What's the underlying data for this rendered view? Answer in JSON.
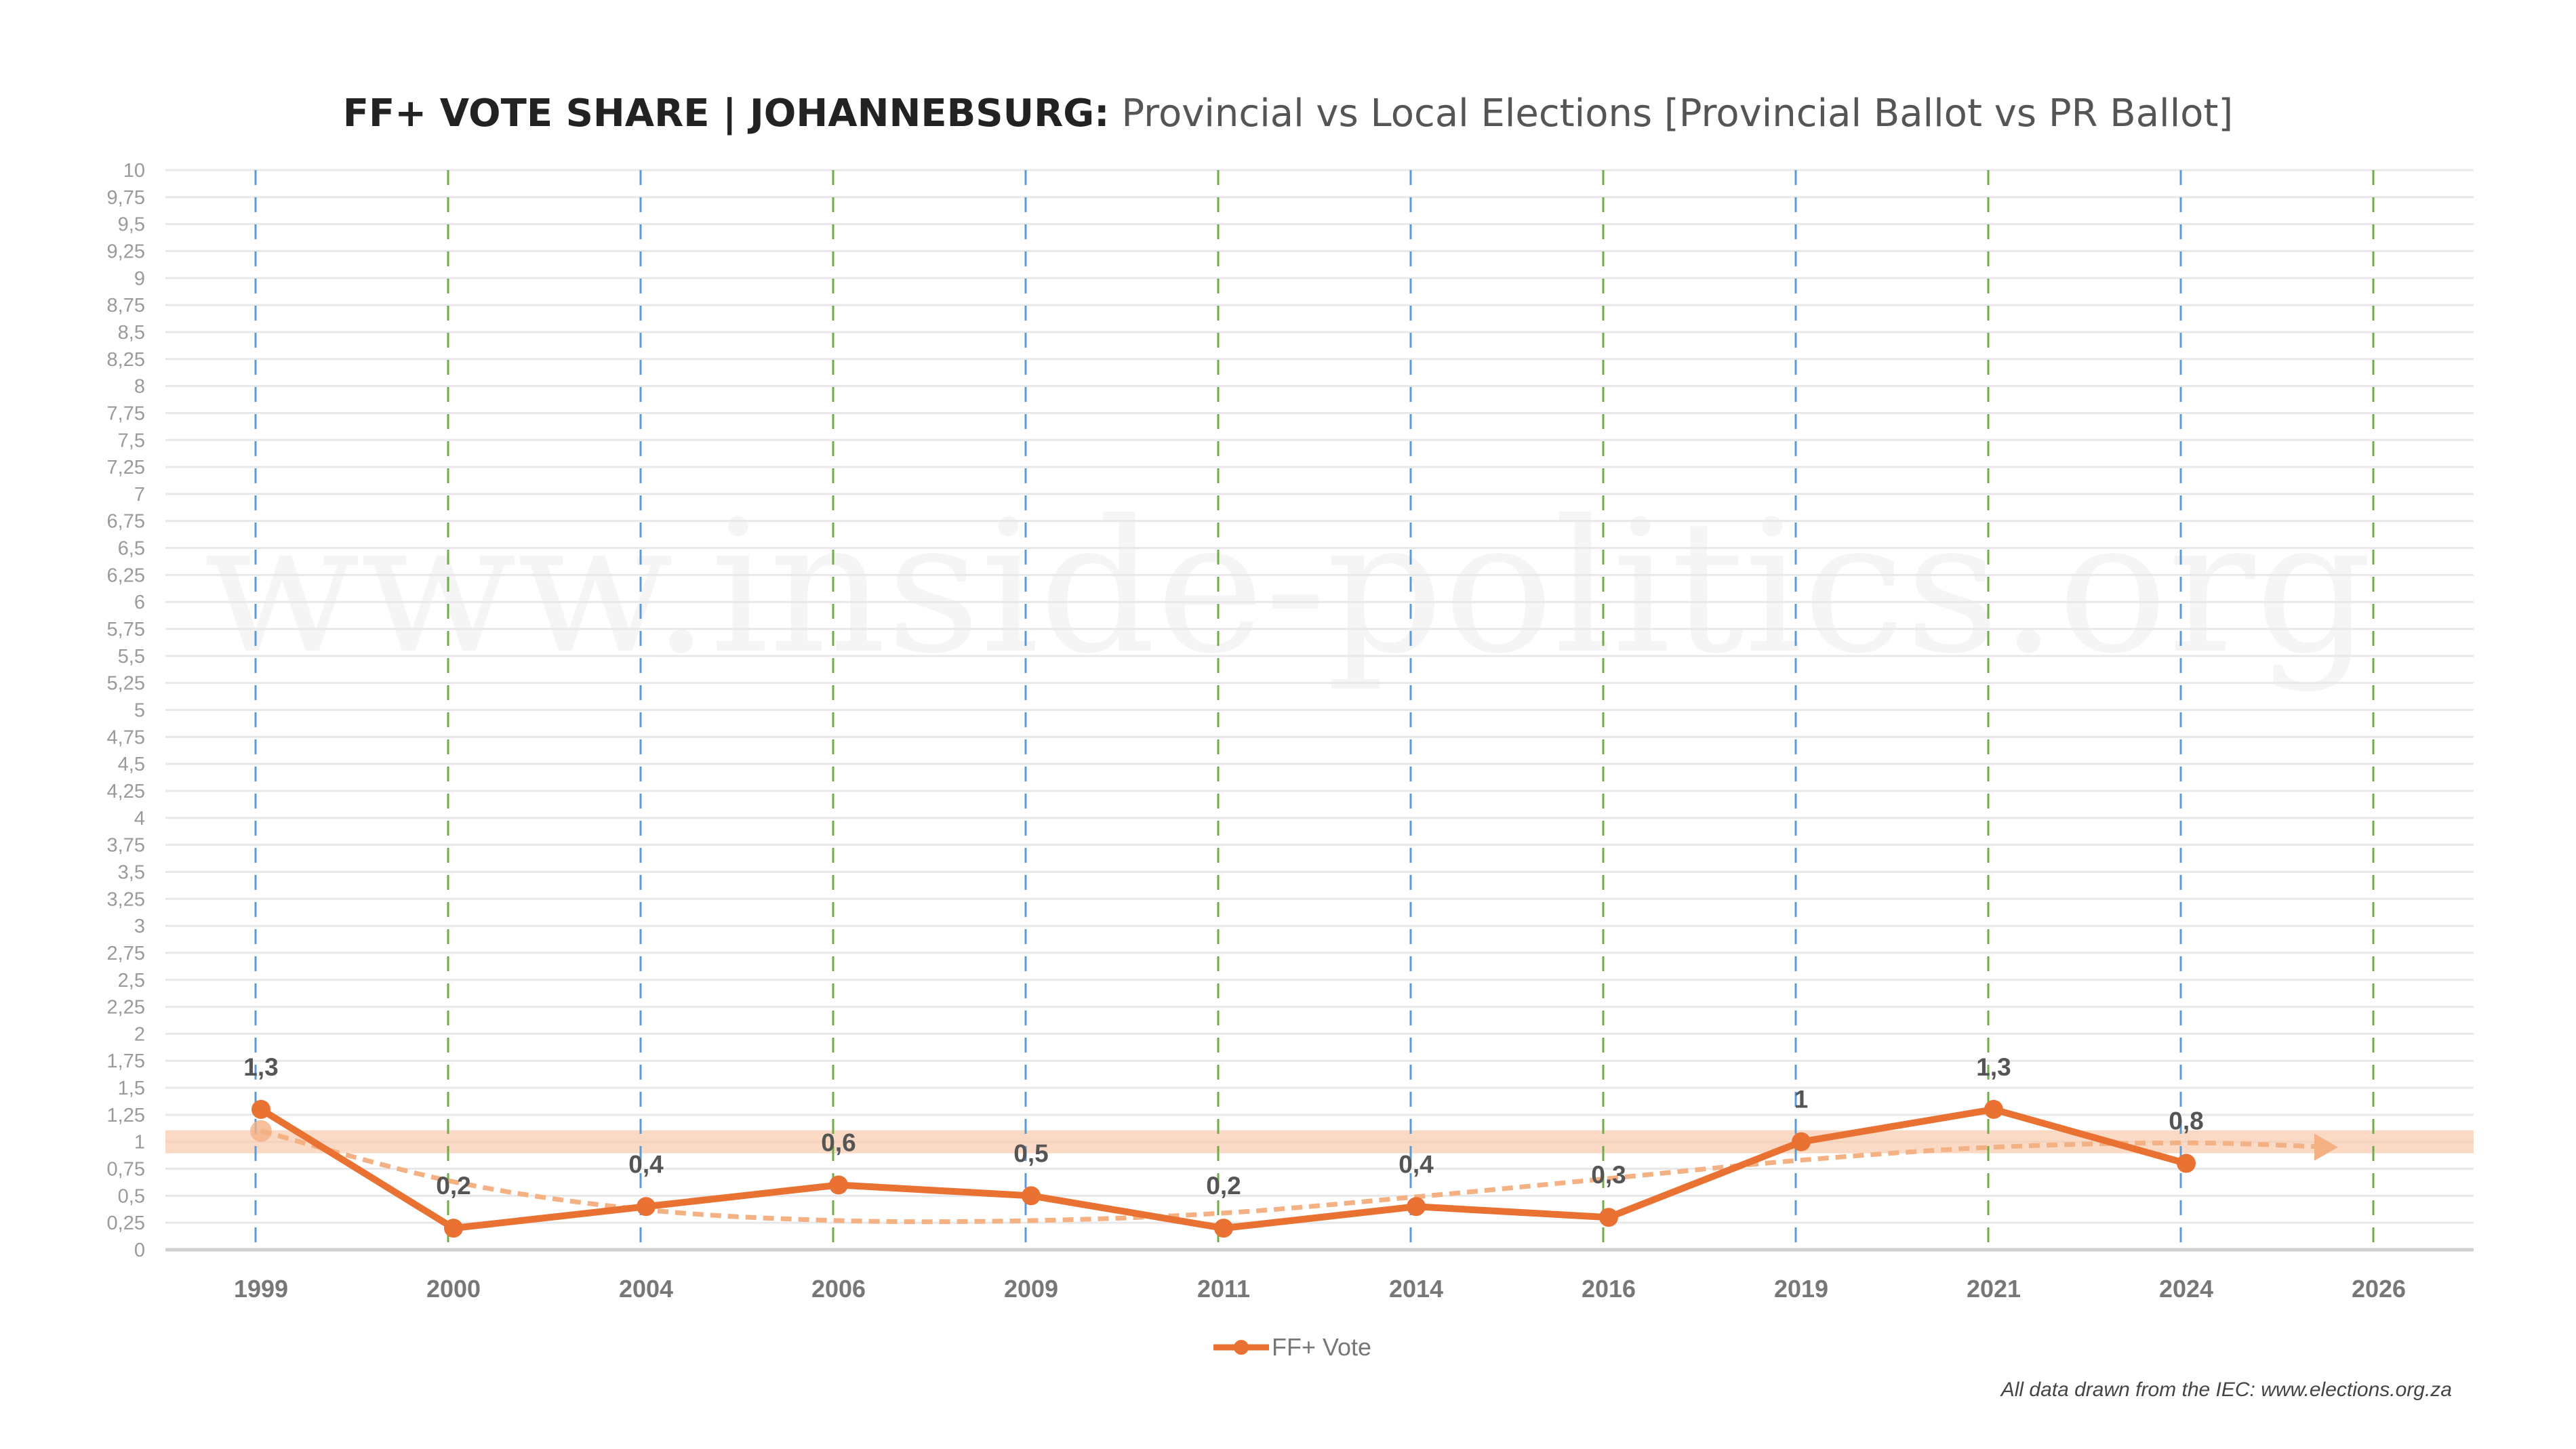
{
  "chart_data": {
    "type": "line",
    "title_bold": "FF+ VOTE SHARE | JOHANNEBSURG:",
    "title_rest": " Provincial vs Local Elections [Provincial Ballot vs PR Ballot]",
    "categories": [
      "1999",
      "2000",
      "2004",
      "2006",
      "2009",
      "2011",
      "2014",
      "2016",
      "2019",
      "2021",
      "2024",
      "2026"
    ],
    "election_types": [
      "provincial",
      "local",
      "provincial",
      "local",
      "provincial",
      "local",
      "provincial",
      "local",
      "provincial",
      "local",
      "provincial",
      "local"
    ],
    "series": [
      {
        "name": "FF+ Vote",
        "color": "#E97132",
        "values": [
          1.3,
          0.2,
          0.4,
          0.6,
          0.5,
          0.2,
          0.4,
          0.3,
          1,
          1.3,
          0.8,
          null
        ],
        "labels": [
          "1,3",
          "0,2",
          "0,4",
          "0,6",
          "0,5",
          "0,2",
          "0,4",
          "0,3",
          "1",
          "1,3",
          "0,8",
          ""
        ]
      }
    ],
    "trendline": {
      "color": "#F4B183",
      "style": "dashed",
      "values": [
        1.1,
        0.63,
        0.37,
        0.27,
        0.27,
        0.34,
        0.49,
        0.66,
        0.83,
        0.95,
        0.99,
        0.95
      ]
    },
    "reference_band": {
      "value": 1,
      "color": "#F8CBAD"
    },
    "ylim": [
      0,
      10
    ],
    "ytick_step": 0.25,
    "ytick_labels": [
      "0",
      "0,25",
      "0,5",
      "0,75",
      "1",
      "1,25",
      "1,5",
      "1,75",
      "2",
      "2,25",
      "2,5",
      "2,75",
      "3",
      "3,25",
      "3,5",
      "3,75",
      "4",
      "4,25",
      "4,5",
      "4,75",
      "5",
      "5,25",
      "5,5",
      "5,75",
      "6",
      "6,25",
      "6,5",
      "6,75",
      "7",
      "7,25",
      "7,5",
      "7,75",
      "8",
      "8,25",
      "8,5",
      "8,75",
      "9",
      "9,25",
      "9,5",
      "9,75",
      "10"
    ],
    "gridlines": true,
    "vline_colors": {
      "provincial": "#5B9BD5",
      "local": "#70AD47"
    },
    "legend_position": "bottom",
    "xlabel": "",
    "ylabel": ""
  },
  "watermark": "www.inside-politics.org",
  "footer": "All data drawn from the IEC: www.elections.org.za"
}
